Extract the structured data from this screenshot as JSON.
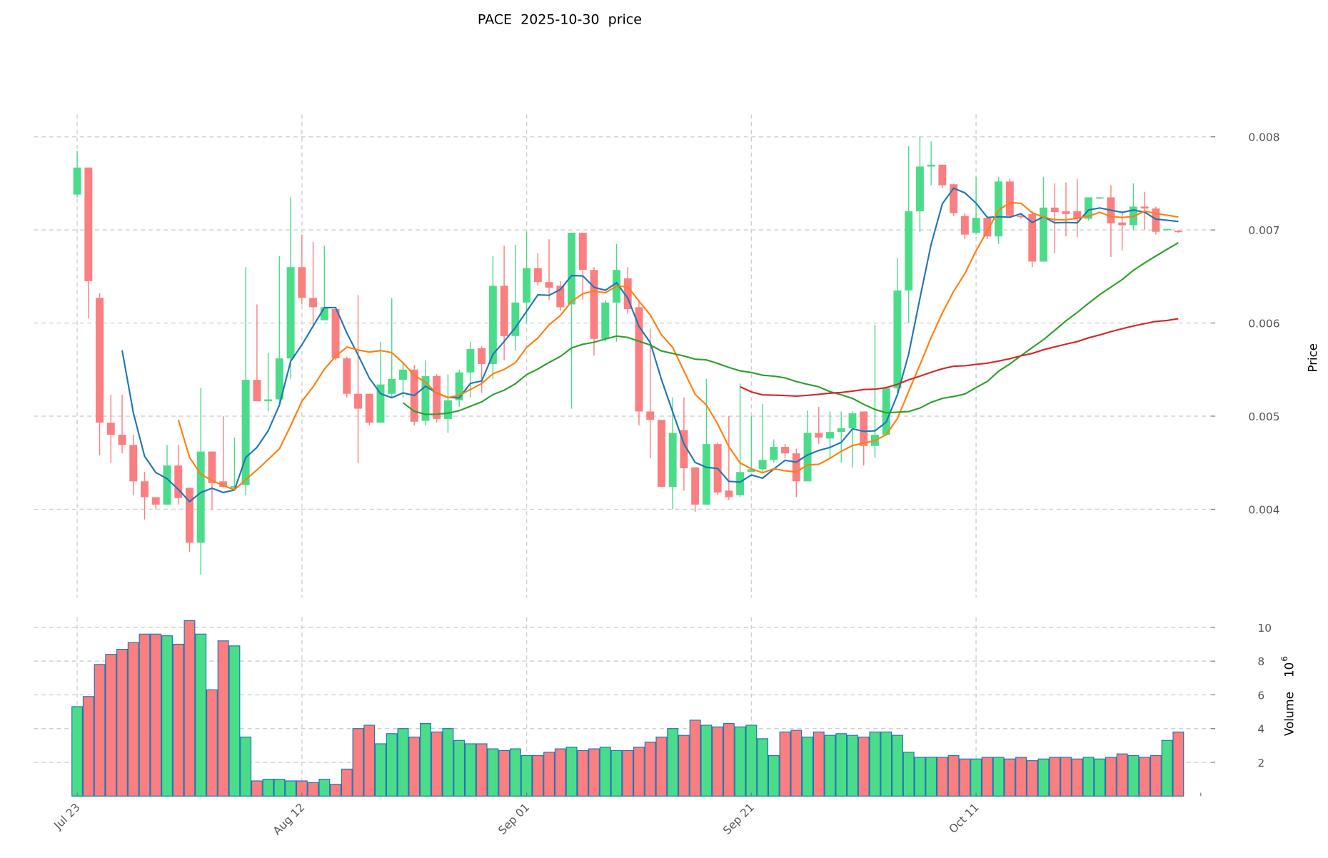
{
  "chart_data": {
    "type": "candlestick",
    "title": "PACE  2025-10-30  price",
    "ylabel": "Price",
    "volume_label": "Volume",
    "volume_exponent_label": "10",
    "volume_exponent": "6",
    "x_start": "2025-07-23",
    "x_step_days": 1,
    "xticks": [
      {
        "index": 0,
        "label": "Jul 23"
      },
      {
        "index": 20,
        "label": "Aug 12"
      },
      {
        "index": 40,
        "label": "Sep 01"
      },
      {
        "index": 60,
        "label": "Sep 21"
      },
      {
        "index": 80,
        "label": "Oct 11"
      }
    ],
    "price_ticks": [
      "0.004",
      "0.005",
      "0.006",
      "0.007",
      "0.008"
    ],
    "volume_ticks": [
      "2",
      "4",
      "6",
      "8",
      "10"
    ],
    "ylim": [
      0.00305,
      0.00824
    ],
    "volume_ylim": [
      0,
      10.6
    ],
    "grid": true,
    "colors": {
      "up": "#4bdc8a",
      "down": "#fb7f80",
      "volume_edge": "#1f77b4",
      "grid": "#d0d0d0"
    },
    "moving_averages": [
      {
        "window": 5,
        "color": "#1f77b4"
      },
      {
        "window": 10,
        "color": "#ff7f0e"
      },
      {
        "window": 30,
        "color": "#2ca02c"
      },
      {
        "window": 60,
        "color": "#d62728"
      }
    ],
    "candles_ohlcv": [
      [
        0.00738,
        0.00785,
        0.00735,
        0.00767,
        5.3
      ],
      [
        0.00767,
        0.00767,
        0.00605,
        0.00645,
        5.9
      ],
      [
        0.00627,
        0.00632,
        0.00458,
        0.00493,
        7.8
      ],
      [
        0.00493,
        0.00523,
        0.0045,
        0.0048,
        8.4
      ],
      [
        0.0048,
        0.00523,
        0.0046,
        0.00469,
        8.7
      ],
      [
        0.00469,
        0.0048,
        0.00415,
        0.0043,
        9.1
      ],
      [
        0.0043,
        0.0044,
        0.00389,
        0.00413,
        9.6
      ],
      [
        0.00413,
        0.00413,
        0.004,
        0.00405,
        9.6
      ],
      [
        0.00405,
        0.00469,
        0.00405,
        0.00447,
        9.5
      ],
      [
        0.00447,
        0.00469,
        0.00405,
        0.00412,
        9.0
      ],
      [
        0.00423,
        0.00423,
        0.00354,
        0.00364,
        10.4
      ],
      [
        0.00364,
        0.0053,
        0.0033,
        0.00462,
        9.6
      ],
      [
        0.00462,
        0.00462,
        0.004,
        0.00428,
        6.3
      ],
      [
        0.0043,
        0.005,
        0.00423,
        0.00424,
        9.2
      ],
      [
        0.00423,
        0.00477,
        0.0042,
        0.00425,
        8.9
      ],
      [
        0.00426,
        0.0066,
        0.00415,
        0.00539,
        3.5
      ],
      [
        0.00539,
        0.0062,
        0.00516,
        0.00516,
        0.9
      ],
      [
        0.00516,
        0.00568,
        0.00505,
        0.00518,
        1.0
      ],
      [
        0.00518,
        0.00672,
        0.0051,
        0.00562,
        1.0
      ],
      [
        0.00562,
        0.00735,
        0.0054,
        0.0066,
        0.9
      ],
      [
        0.0066,
        0.00695,
        0.0062,
        0.00627,
        0.9
      ],
      [
        0.00627,
        0.00687,
        0.00595,
        0.00617,
        0.8
      ],
      [
        0.00603,
        0.00683,
        0.00603,
        0.00617,
        1.0
      ],
      [
        0.00615,
        0.00615,
        0.0056,
        0.00562,
        0.7
      ],
      [
        0.00562,
        0.00564,
        0.0052,
        0.00524,
        1.6
      ],
      [
        0.00524,
        0.0063,
        0.0045,
        0.00508,
        4.0
      ],
      [
        0.00524,
        0.00524,
        0.0049,
        0.00493,
        4.2
      ],
      [
        0.00493,
        0.0058,
        0.00493,
        0.00534,
        3.1
      ],
      [
        0.00524,
        0.00627,
        0.0052,
        0.0054,
        3.7
      ],
      [
        0.00539,
        0.00558,
        0.0052,
        0.0055,
        4.0
      ],
      [
        0.0055,
        0.00555,
        0.0049,
        0.00494,
        3.5
      ],
      [
        0.00495,
        0.0056,
        0.0049,
        0.00543,
        4.3
      ],
      [
        0.00543,
        0.00545,
        0.00493,
        0.00497,
        3.8
      ],
      [
        0.00497,
        0.00545,
        0.00482,
        0.00517,
        4.0
      ],
      [
        0.00517,
        0.0055,
        0.0051,
        0.00547,
        3.3
      ],
      [
        0.00547,
        0.0058,
        0.0052,
        0.00572,
        3.1
      ],
      [
        0.00573,
        0.00575,
        0.00525,
        0.00556,
        3.1
      ],
      [
        0.00556,
        0.00672,
        0.0054,
        0.0064,
        2.8
      ],
      [
        0.0064,
        0.00683,
        0.0056,
        0.00586,
        2.7
      ],
      [
        0.00586,
        0.00684,
        0.0057,
        0.00622,
        2.8
      ],
      [
        0.00622,
        0.00698,
        0.006,
        0.00659,
        2.4
      ],
      [
        0.00659,
        0.00675,
        0.0064,
        0.00644,
        2.4
      ],
      [
        0.00644,
        0.0069,
        0.00625,
        0.00638,
        2.6
      ],
      [
        0.0064,
        0.00645,
        0.00613,
        0.00617,
        2.8
      ],
      [
        0.0062,
        0.00697,
        0.00508,
        0.00697,
        2.9
      ],
      [
        0.00697,
        0.00697,
        0.00625,
        0.00657,
        2.7
      ],
      [
        0.00657,
        0.0066,
        0.00565,
        0.00583,
        2.8
      ],
      [
        0.00583,
        0.00625,
        0.0058,
        0.00622,
        2.9
      ],
      [
        0.00622,
        0.00685,
        0.0058,
        0.00657,
        2.7
      ],
      [
        0.00648,
        0.0066,
        0.0061,
        0.00615,
        2.7
      ],
      [
        0.00617,
        0.00625,
        0.0049,
        0.00505,
        2.9
      ],
      [
        0.00505,
        0.00594,
        0.00455,
        0.00496,
        3.2
      ],
      [
        0.00496,
        0.00496,
        0.00424,
        0.00424,
        3.5
      ],
      [
        0.00424,
        0.0052,
        0.004,
        0.00482,
        4.0
      ],
      [
        0.00485,
        0.0052,
        0.0042,
        0.00444,
        3.6
      ],
      [
        0.00445,
        0.00445,
        0.00397,
        0.00405,
        4.5
      ],
      [
        0.00405,
        0.0054,
        0.00405,
        0.0047,
        4.2
      ],
      [
        0.0047,
        0.00472,
        0.00415,
        0.00418,
        4.1
      ],
      [
        0.0042,
        0.005,
        0.0041,
        0.00413,
        4.3
      ],
      [
        0.00415,
        0.00535,
        0.00413,
        0.0044,
        4.1
      ],
      [
        0.0044,
        0.005,
        0.0044,
        0.00443,
        4.2
      ],
      [
        0.00443,
        0.00513,
        0.0044,
        0.00453,
        3.4
      ],
      [
        0.00453,
        0.00475,
        0.0045,
        0.00467,
        2.4
      ],
      [
        0.00467,
        0.0047,
        0.00455,
        0.0046,
        3.8
      ],
      [
        0.0046,
        0.00465,
        0.00413,
        0.0043,
        3.9
      ],
      [
        0.0043,
        0.00506,
        0.0043,
        0.00482,
        3.5
      ],
      [
        0.00482,
        0.0051,
        0.0047,
        0.00477,
        3.8
      ],
      [
        0.00476,
        0.00505,
        0.00455,
        0.00483,
        3.6
      ],
      [
        0.00483,
        0.00505,
        0.0045,
        0.00487,
        3.7
      ],
      [
        0.00487,
        0.00505,
        0.00445,
        0.00503,
        3.6
      ],
      [
        0.00505,
        0.00505,
        0.00447,
        0.00468,
        3.5
      ],
      [
        0.00468,
        0.00598,
        0.00455,
        0.0048,
        3.8
      ],
      [
        0.0048,
        0.0053,
        0.0048,
        0.0053,
        3.8
      ],
      [
        0.0053,
        0.0067,
        0.00525,
        0.00635,
        3.6
      ],
      [
        0.00635,
        0.0079,
        0.006,
        0.0072,
        2.6
      ],
      [
        0.0072,
        0.008,
        0.00698,
        0.00768,
        2.3
      ],
      [
        0.00768,
        0.00795,
        0.00748,
        0.0077,
        2.3
      ],
      [
        0.0077,
        0.0077,
        0.00745,
        0.00748,
        2.3
      ],
      [
        0.00749,
        0.0075,
        0.00715,
        0.00718,
        2.4
      ],
      [
        0.00715,
        0.00718,
        0.0069,
        0.00695,
        2.2
      ],
      [
        0.00697,
        0.00757,
        0.00695,
        0.00713,
        2.2
      ],
      [
        0.00713,
        0.00715,
        0.0069,
        0.00693,
        2.3
      ],
      [
        0.00693,
        0.00757,
        0.00685,
        0.00752,
        2.3
      ],
      [
        0.00752,
        0.00755,
        0.00713,
        0.00715,
        2.2
      ],
      [
        0.00715,
        0.00718,
        0.00712,
        0.00714,
        2.3
      ],
      [
        0.00717,
        0.0072,
        0.0066,
        0.00666,
        2.1
      ],
      [
        0.00666,
        0.00757,
        0.00666,
        0.00724,
        2.2
      ],
      [
        0.00724,
        0.0075,
        0.00675,
        0.00719,
        2.3
      ],
      [
        0.0072,
        0.00751,
        0.00693,
        0.00717,
        2.3
      ],
      [
        0.0072,
        0.00755,
        0.00692,
        0.00712,
        2.2
      ],
      [
        0.00712,
        0.00735,
        0.0071,
        0.00735,
        2.3
      ],
      [
        0.00734,
        0.00735,
        0.00733,
        0.00735,
        2.2
      ],
      [
        0.00735,
        0.00748,
        0.00671,
        0.00707,
        2.3
      ],
      [
        0.00708,
        0.0072,
        0.00678,
        0.00705,
        2.5
      ],
      [
        0.00705,
        0.0075,
        0.007,
        0.00725,
        2.4
      ],
      [
        0.00725,
        0.00741,
        0.007,
        0.00723,
        2.3
      ],
      [
        0.00723,
        0.00725,
        0.00695,
        0.00698,
        2.4
      ],
      [
        0.007,
        0.00701,
        0.00699,
        0.00701,
        3.3
      ],
      [
        0.00699,
        0.007,
        0.00697,
        0.00698,
        3.8
      ]
    ]
  }
}
